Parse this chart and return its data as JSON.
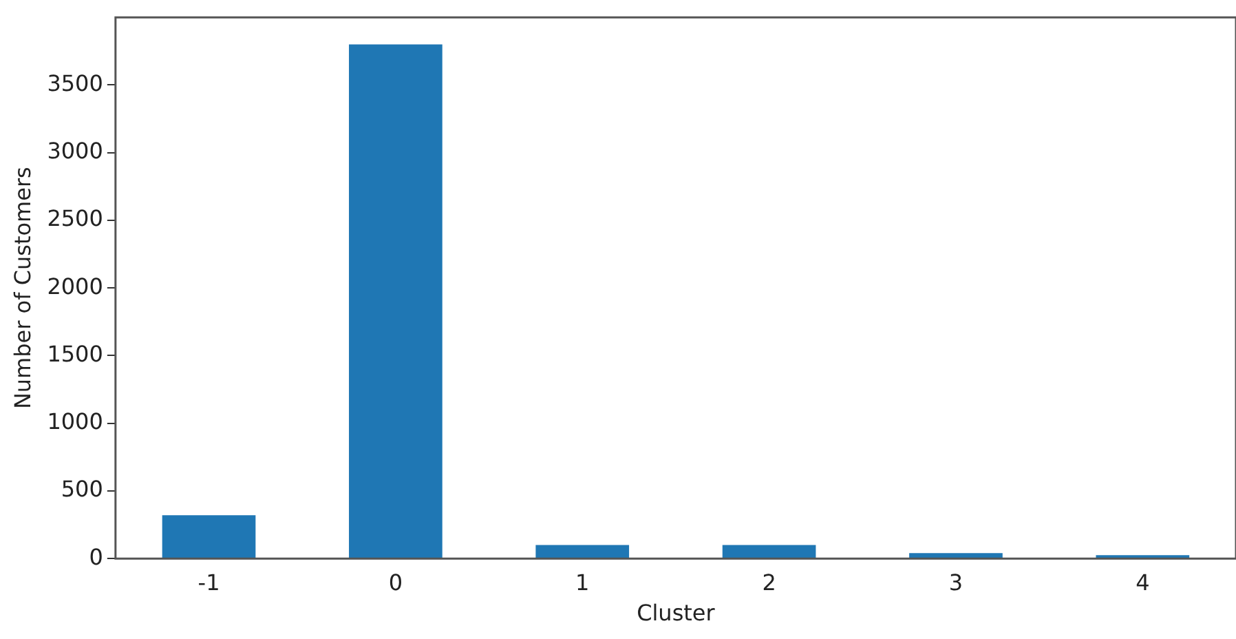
{
  "chart_data": {
    "type": "bar",
    "xlabel": "Cluster",
    "ylabel": "Number of Customers",
    "categories": [
      "-1",
      "0",
      "1",
      "2",
      "3",
      "4"
    ],
    "values": [
      320,
      3800,
      100,
      100,
      40,
      25
    ],
    "color": "#1f77b4",
    "ylim": [
      0,
      4000
    ],
    "yticks": [
      0,
      500,
      1000,
      1500,
      2000,
      2500,
      3000,
      3500
    ],
    "grid": false,
    "legend": false
  }
}
